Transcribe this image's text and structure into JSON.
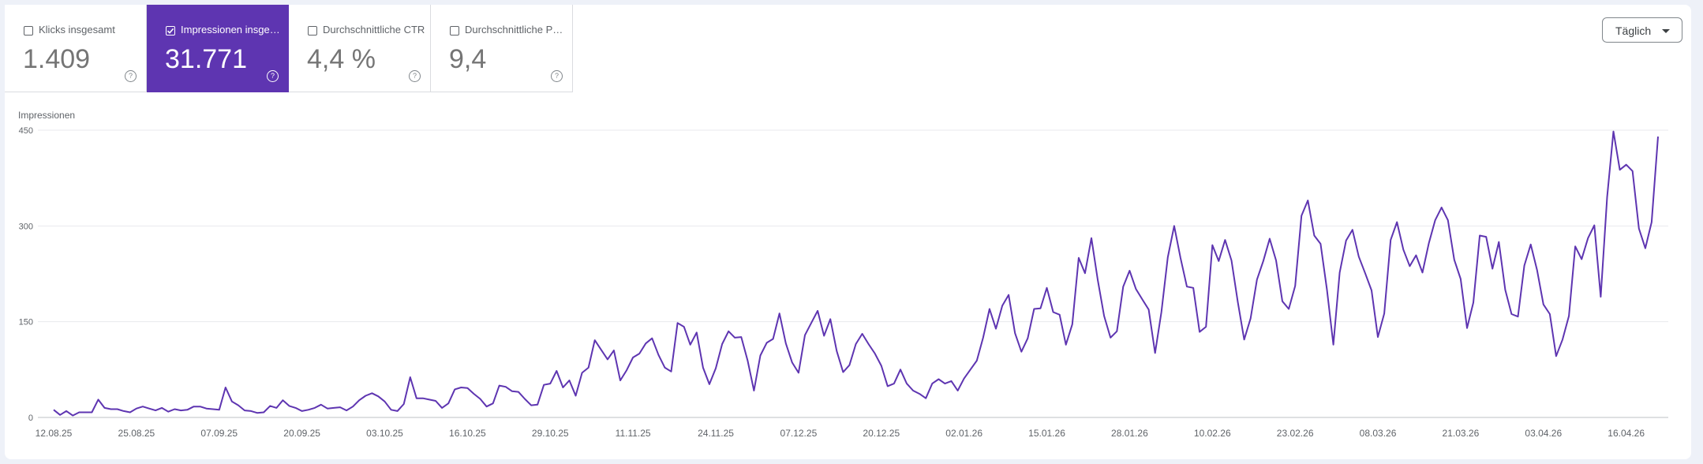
{
  "tiles": [
    {
      "label": "Klicks insgesamt",
      "value": "1.409",
      "checked": false
    },
    {
      "label": "Impressionen insgesamt",
      "value": "31.771",
      "checked": true
    },
    {
      "label": "Durchschnittliche CTR",
      "value": "4,4 %",
      "checked": false
    },
    {
      "label": "Durchschnittliche Position",
      "value": "9,4",
      "checked": false
    }
  ],
  "period_dropdown": {
    "label": "Täglich"
  },
  "colors": {
    "accent": "#5e35b1",
    "line": "#5e35b1"
  },
  "chart_data": {
    "type": "line",
    "ylabel": "Impressionen",
    "ylim": [
      0,
      450
    ],
    "yticks": [
      "0",
      "150",
      "300",
      "450"
    ],
    "xticks": [
      "12.08.25",
      "25.08.25",
      "07.09.25",
      "20.09.25",
      "03.10.25",
      "16.10.25",
      "29.10.25",
      "11.11.25",
      "24.11.25",
      "07.12.25",
      "20.12.25",
      "02.01.26",
      "15.01.26",
      "28.01.26",
      "10.02.26",
      "23.02.26",
      "08.03.26",
      "21.03.26",
      "03.04.26",
      "16.04.26"
    ],
    "x_start": "12.08.25",
    "series": [
      {
        "name": "Impressionen",
        "values": [
          12,
          4,
          10,
          3,
          8,
          8,
          8,
          28,
          15,
          13,
          13,
          10,
          8,
          14,
          17,
          14,
          11,
          15,
          9,
          13,
          11,
          12,
          17,
          17,
          14,
          13,
          12,
          47,
          25,
          19,
          11,
          10,
          7,
          8,
          18,
          15,
          27,
          18,
          15,
          10,
          12,
          15,
          20,
          14,
          15,
          16,
          11,
          17,
          27,
          34,
          38,
          33,
          25,
          12,
          10,
          21,
          63,
          30,
          30,
          28,
          26,
          15,
          22,
          44,
          47,
          46,
          37,
          29,
          17,
          22,
          50,
          48,
          41,
          40,
          29,
          19,
          20,
          51,
          53,
          73,
          47,
          58,
          34,
          70,
          78,
          121,
          106,
          91,
          105,
          58,
          74,
          94,
          100,
          116,
          124,
          98,
          78,
          72,
          148,
          142,
          114,
          133,
          78,
          52,
          77,
          115,
          135,
          125,
          126,
          89,
          42,
          97,
          117,
          123,
          163,
          116,
          86,
          70,
          129,
          148,
          167,
          128,
          154,
          104,
          71,
          82,
          115,
          131,
          115,
          100,
          81,
          49,
          53,
          75,
          53,
          42,
          37,
          30,
          53,
          60,
          53,
          57,
          42,
          61,
          75,
          89,
          125,
          170,
          139,
          175,
          192,
          132,
          103,
          124,
          170,
          171,
          203,
          165,
          161,
          114,
          146,
          250,
          226,
          281,
          215,
          159,
          125,
          135,
          205,
          230,
          201,
          185,
          169,
          101,
          165,
          251,
          300,
          250,
          205,
          203,
          134,
          142,
          270,
          245,
          278,
          246,
          181,
          122,
          155,
          216,
          245,
          280,
          246,
          182,
          170,
          206,
          316,
          340,
          285,
          272,
          200,
          114,
          227,
          277,
          294,
          252,
          226,
          199,
          126,
          163,
          278,
          306,
          263,
          237,
          254,
          227,
          273,
          309,
          329,
          309,
          247,
          217,
          140,
          180,
          285,
          283,
          233,
          275,
          200,
          162,
          158,
          238,
          271,
          231,
          177,
          162,
          96,
          122,
          159,
          268,
          248,
          281,
          301,
          189,
          345,
          448,
          388,
          396,
          386,
          296,
          265,
          306,
          440
        ]
      }
    ]
  }
}
